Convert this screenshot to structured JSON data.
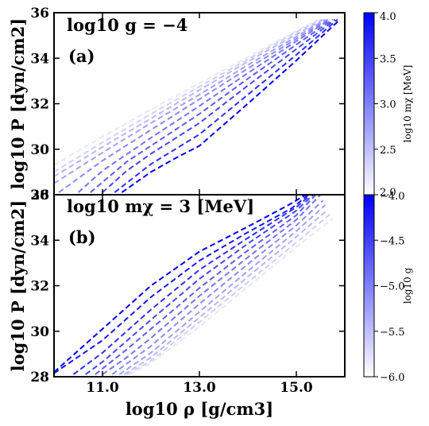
{
  "chart_data": [
    {
      "type": "line",
      "panel_label": "(a)",
      "annotation": "log10 g = −4",
      "xlabel": "log10 ρ [g/cm3]",
      "ylabel": "log10 P [dyn/cm2]",
      "xlim": [
        10.0,
        16.0
      ],
      "ylim": [
        28,
        36
      ],
      "xticks": [
        11.0,
        13.0,
        15.0
      ],
      "xtick_labels": [
        "11.0",
        "13.0",
        "15.0"
      ],
      "yticks": [
        28,
        30,
        32,
        34,
        36
      ],
      "ytick_labels": [
        "28",
        "30",
        "32",
        "34",
        "36"
      ],
      "line_style": "dashed",
      "colormap": {
        "from": "#ffffff",
        "to": "#0000ff"
      },
      "colorbar": {
        "label": "log10 mχ [MeV]",
        "range": [
          2.0,
          4.0
        ],
        "ticks": [
          2.0,
          2.5,
          3.0,
          3.5,
          4.0
        ],
        "tick_labels": [
          "2.0",
          "2.5",
          "3.0",
          "3.5",
          "4.0"
        ]
      },
      "series": [
        {
          "param": 2.0,
          "x": [
            10.0,
            11.0,
            12.0,
            13.0,
            14.0,
            15.0,
            15.45
          ],
          "y": [
            29.3,
            30.55,
            31.75,
            32.9,
            34.05,
            35.2,
            35.7
          ]
        },
        {
          "param": 2.2,
          "x": [
            10.0,
            11.0,
            12.0,
            13.0,
            14.0,
            15.0,
            15.5
          ],
          "y": [
            29.0,
            30.3,
            31.55,
            32.75,
            33.95,
            35.15,
            35.7
          ]
        },
        {
          "param": 2.4,
          "x": [
            10.0,
            11.0,
            12.0,
            13.0,
            14.0,
            15.0,
            15.55
          ],
          "y": [
            28.8,
            30.1,
            31.35,
            32.6,
            33.85,
            35.05,
            35.7
          ]
        },
        {
          "param": 2.6,
          "x": [
            10.0,
            11.0,
            12.0,
            13.0,
            14.0,
            15.0,
            15.6
          ],
          "y": [
            28.5,
            29.85,
            31.15,
            32.4,
            33.7,
            34.95,
            35.7
          ]
        },
        {
          "param": 2.8,
          "x": [
            10.1,
            11.0,
            12.0,
            13.0,
            14.0,
            15.0,
            15.65
          ],
          "y": [
            28.1,
            29.5,
            30.85,
            32.2,
            33.55,
            34.85,
            35.7
          ]
        },
        {
          "param": 3.0,
          "x": [
            10.5,
            11.0,
            12.0,
            13.0,
            14.0,
            15.0,
            15.7
          ],
          "y": [
            28.1,
            29.05,
            30.5,
            31.9,
            33.35,
            34.75,
            35.7
          ]
        },
        {
          "param": 3.2,
          "x": [
            10.75,
            11.5,
            12.0,
            13.0,
            14.0,
            15.0,
            15.75
          ],
          "y": [
            28.1,
            29.45,
            30.15,
            31.55,
            33.1,
            34.6,
            35.7
          ]
        },
        {
          "param": 3.4,
          "x": [
            11.0,
            11.5,
            12.0,
            13.0,
            14.0,
            15.0,
            15.8
          ],
          "y": [
            28.1,
            29.05,
            29.8,
            31.15,
            32.8,
            34.4,
            35.7
          ]
        },
        {
          "param": 3.6,
          "x": [
            11.25,
            12.0,
            12.5,
            13.0,
            14.0,
            15.0,
            15.85
          ],
          "y": [
            28.1,
            29.35,
            30.0,
            30.65,
            32.4,
            34.15,
            35.7
          ]
        },
        {
          "param": 4.0,
          "x": [
            11.4,
            12.0,
            12.5,
            13.0,
            14.0,
            15.0,
            15.9
          ],
          "y": [
            28.1,
            29.0,
            29.6,
            30.15,
            32.0,
            33.9,
            35.7
          ]
        }
      ]
    },
    {
      "type": "line",
      "panel_label": "(b)",
      "annotation": "log10 mχ = 3 [MeV]",
      "xlabel": "log10 ρ [g/cm3]",
      "ylabel": "log10 P [dyn/cm2]",
      "xlim": [
        10.0,
        16.0
      ],
      "ylim": [
        28,
        36
      ],
      "xticks": [
        11.0,
        13.0,
        15.0
      ],
      "xtick_labels": [
        "11.0",
        "13.0",
        "15.0"
      ],
      "yticks": [
        28,
        30,
        32,
        34,
        36
      ],
      "ytick_labels": [
        "28",
        "30",
        "32",
        "34",
        "36"
      ],
      "line_style": "dashed",
      "colormap": {
        "from": "#ffffff",
        "to": "#0000ff"
      },
      "colorbar": {
        "label": "log10 g",
        "range": [
          -6.0,
          -4.0
        ],
        "ticks": [
          -6.0,
          -5.5,
          -5.0,
          -4.5,
          -4.0
        ],
        "tick_labels": [
          "−6.0",
          "−5.5",
          "−5.0",
          "−4.5",
          "−4.0"
        ]
      },
      "series": [
        {
          "param": -4.0,
          "x": [
            10.0,
            11.0,
            12.0,
            13.0,
            14.0,
            14.8,
            15.2
          ],
          "y": [
            28.2,
            30.1,
            32.0,
            33.5,
            34.6,
            35.5,
            36.0
          ]
        },
        {
          "param": -4.2,
          "x": [
            10.0,
            11.0,
            12.0,
            13.0,
            14.0,
            14.9,
            15.25
          ],
          "y": [
            28.15,
            29.6,
            31.5,
            33.1,
            34.35,
            35.4,
            36.0
          ]
        },
        {
          "param": -4.4,
          "x": [
            10.4,
            11.0,
            12.0,
            13.0,
            14.0,
            15.0,
            15.3
          ],
          "y": [
            28.1,
            29.05,
            30.95,
            32.7,
            34.1,
            35.45,
            36.0
          ]
        },
        {
          "param": -4.6,
          "x": [
            10.65,
            11.0,
            12.0,
            13.0,
            14.0,
            15.0,
            15.35
          ],
          "y": [
            28.1,
            28.65,
            30.5,
            32.3,
            33.85,
            35.3,
            36.0
          ]
        },
        {
          "param": -4.8,
          "x": [
            10.85,
            11.5,
            12.0,
            13.0,
            14.0,
            15.0,
            15.4
          ],
          "y": [
            28.1,
            29.2,
            30.1,
            31.9,
            33.55,
            35.1,
            36.0
          ]
        },
        {
          "param": -5.0,
          "x": [
            11.0,
            11.5,
            12.0,
            13.0,
            14.0,
            15.0,
            15.5
          ],
          "y": [
            28.1,
            28.85,
            29.7,
            31.55,
            33.25,
            34.9,
            36.0
          ]
        },
        {
          "param": -5.2,
          "x": [
            11.2,
            12.0,
            13.0,
            14.0,
            15.0,
            15.55
          ],
          "y": [
            28.1,
            29.35,
            31.2,
            32.95,
            34.65,
            35.75
          ]
        },
        {
          "param": -5.4,
          "x": [
            11.35,
            12.0,
            13.0,
            14.0,
            15.0,
            15.6
          ],
          "y": [
            28.1,
            29.05,
            30.85,
            32.65,
            34.4,
            35.55
          ]
        },
        {
          "param": -5.6,
          "x": [
            11.45,
            12.0,
            13.0,
            14.0,
            15.0,
            15.65
          ],
          "y": [
            28.1,
            28.85,
            30.6,
            32.4,
            34.15,
            35.35
          ]
        },
        {
          "param": -5.8,
          "x": [
            11.5,
            12.0,
            13.0,
            14.0,
            15.0,
            15.7
          ],
          "y": [
            28.1,
            28.7,
            30.4,
            32.15,
            33.9,
            35.15
          ]
        },
        {
          "param": -6.0,
          "x": [
            11.55,
            12.0,
            13.0,
            14.0,
            15.0,
            15.75
          ],
          "y": [
            28.1,
            28.6,
            30.2,
            31.95,
            33.7,
            34.95
          ]
        }
      ]
    }
  ]
}
